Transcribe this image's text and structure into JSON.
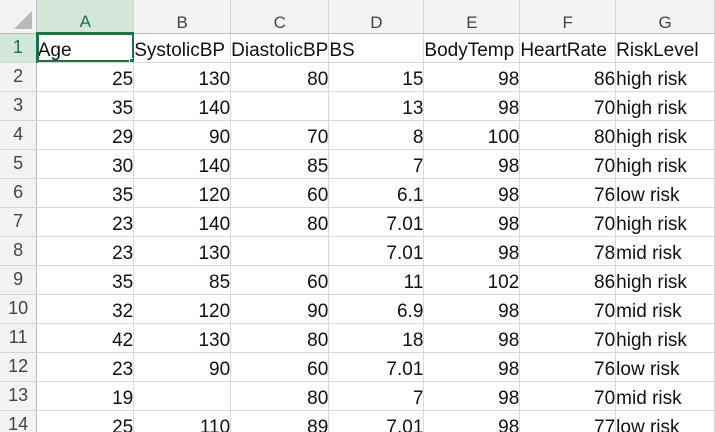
{
  "sheet": {
    "columns": [
      "A",
      "B",
      "C",
      "D",
      "E",
      "F",
      "G"
    ],
    "active_column": "A",
    "active_row": "1",
    "selected_cell": "A1",
    "rows": [
      {
        "num": "1",
        "cells": [
          {
            "v": "Age",
            "t": "txt"
          },
          {
            "v": "SystolicBP",
            "t": "txt"
          },
          {
            "v": "DiastolicBP",
            "t": "txt"
          },
          {
            "v": "BS",
            "t": "txt"
          },
          {
            "v": "BodyTemp",
            "t": "txt"
          },
          {
            "v": "HeartRate",
            "t": "txt"
          },
          {
            "v": "RiskLevel",
            "t": "txt"
          }
        ]
      },
      {
        "num": "2",
        "cells": [
          {
            "v": "25",
            "t": "num"
          },
          {
            "v": "130",
            "t": "num"
          },
          {
            "v": "80",
            "t": "num"
          },
          {
            "v": "15",
            "t": "num"
          },
          {
            "v": "98",
            "t": "num"
          },
          {
            "v": "86",
            "t": "num"
          },
          {
            "v": "high risk",
            "t": "txt"
          }
        ]
      },
      {
        "num": "3",
        "cells": [
          {
            "v": "35",
            "t": "num"
          },
          {
            "v": "140",
            "t": "num"
          },
          {
            "v": "",
            "t": "num"
          },
          {
            "v": "13",
            "t": "num"
          },
          {
            "v": "98",
            "t": "num"
          },
          {
            "v": "70",
            "t": "num"
          },
          {
            "v": "high risk",
            "t": "txt"
          }
        ]
      },
      {
        "num": "4",
        "cells": [
          {
            "v": "29",
            "t": "num"
          },
          {
            "v": "90",
            "t": "num"
          },
          {
            "v": "70",
            "t": "num"
          },
          {
            "v": "8",
            "t": "num"
          },
          {
            "v": "100",
            "t": "num"
          },
          {
            "v": "80",
            "t": "num"
          },
          {
            "v": "high risk",
            "t": "txt"
          }
        ]
      },
      {
        "num": "5",
        "cells": [
          {
            "v": "30",
            "t": "num"
          },
          {
            "v": "140",
            "t": "num"
          },
          {
            "v": "85",
            "t": "num"
          },
          {
            "v": "7",
            "t": "num"
          },
          {
            "v": "98",
            "t": "num"
          },
          {
            "v": "70",
            "t": "num"
          },
          {
            "v": "high risk",
            "t": "txt"
          }
        ]
      },
      {
        "num": "6",
        "cells": [
          {
            "v": "35",
            "t": "num"
          },
          {
            "v": "120",
            "t": "num"
          },
          {
            "v": "60",
            "t": "num"
          },
          {
            "v": "6.1",
            "t": "num"
          },
          {
            "v": "98",
            "t": "num"
          },
          {
            "v": "76",
            "t": "num"
          },
          {
            "v": "low risk",
            "t": "txt"
          }
        ]
      },
      {
        "num": "7",
        "cells": [
          {
            "v": "23",
            "t": "num"
          },
          {
            "v": "140",
            "t": "num"
          },
          {
            "v": "80",
            "t": "num"
          },
          {
            "v": "7.01",
            "t": "num"
          },
          {
            "v": "98",
            "t": "num"
          },
          {
            "v": "70",
            "t": "num"
          },
          {
            "v": "high risk",
            "t": "txt"
          }
        ]
      },
      {
        "num": "8",
        "cells": [
          {
            "v": "23",
            "t": "num"
          },
          {
            "v": "130",
            "t": "num"
          },
          {
            "v": "",
            "t": "num"
          },
          {
            "v": "7.01",
            "t": "num"
          },
          {
            "v": "98",
            "t": "num"
          },
          {
            "v": "78",
            "t": "num"
          },
          {
            "v": "mid risk",
            "t": "txt"
          }
        ]
      },
      {
        "num": "9",
        "cells": [
          {
            "v": "35",
            "t": "num"
          },
          {
            "v": "85",
            "t": "num"
          },
          {
            "v": "60",
            "t": "num"
          },
          {
            "v": "11",
            "t": "num"
          },
          {
            "v": "102",
            "t": "num"
          },
          {
            "v": "86",
            "t": "num"
          },
          {
            "v": "high risk",
            "t": "txt"
          }
        ]
      },
      {
        "num": "10",
        "cells": [
          {
            "v": "32",
            "t": "num"
          },
          {
            "v": "120",
            "t": "num"
          },
          {
            "v": "90",
            "t": "num"
          },
          {
            "v": "6.9",
            "t": "num"
          },
          {
            "v": "98",
            "t": "num"
          },
          {
            "v": "70",
            "t": "num"
          },
          {
            "v": "mid risk",
            "t": "txt"
          }
        ]
      },
      {
        "num": "11",
        "cells": [
          {
            "v": "42",
            "t": "num"
          },
          {
            "v": "130",
            "t": "num"
          },
          {
            "v": "80",
            "t": "num"
          },
          {
            "v": "18",
            "t": "num"
          },
          {
            "v": "98",
            "t": "num"
          },
          {
            "v": "70",
            "t": "num"
          },
          {
            "v": "high risk",
            "t": "txt"
          }
        ]
      },
      {
        "num": "12",
        "cells": [
          {
            "v": "23",
            "t": "num"
          },
          {
            "v": "90",
            "t": "num"
          },
          {
            "v": "60",
            "t": "num"
          },
          {
            "v": "7.01",
            "t": "num"
          },
          {
            "v": "98",
            "t": "num"
          },
          {
            "v": "76",
            "t": "num"
          },
          {
            "v": "low risk",
            "t": "txt"
          }
        ]
      },
      {
        "num": "13",
        "cells": [
          {
            "v": "19",
            "t": "num"
          },
          {
            "v": "",
            "t": "num"
          },
          {
            "v": "80",
            "t": "num"
          },
          {
            "v": "7",
            "t": "num"
          },
          {
            "v": "98",
            "t": "num"
          },
          {
            "v": "70",
            "t": "num"
          },
          {
            "v": "mid risk",
            "t": "txt"
          }
        ]
      },
      {
        "num": "14",
        "cells": [
          {
            "v": "25",
            "t": "num"
          },
          {
            "v": "110",
            "t": "num"
          },
          {
            "v": "89",
            "t": "num"
          },
          {
            "v": "7.01",
            "t": "num"
          },
          {
            "v": "98",
            "t": "num"
          },
          {
            "v": "77",
            "t": "num"
          },
          {
            "v": "low risk",
            "t": "txt"
          }
        ]
      }
    ]
  },
  "colors": {
    "accent": "#1e7145",
    "active_header_bg": "#d3e6da",
    "header_bg": "#f3f3f3",
    "gridline": "#d9d9d9"
  }
}
